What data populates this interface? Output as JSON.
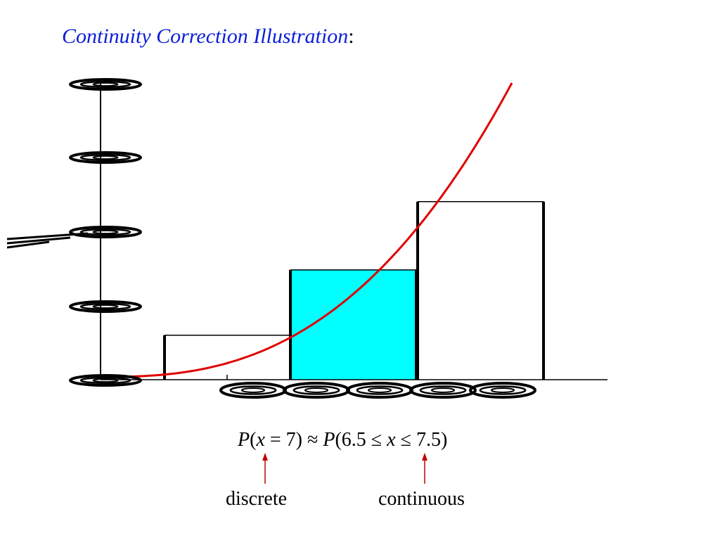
{
  "slide": {
    "title": "Continuity Correction Illustration",
    "title_suffix": ":",
    "title_color": "#0b1ed8"
  },
  "chart_data": {
    "type": "bar",
    "title": "",
    "y_axis_label": "",
    "y_ticks": [],
    "x_ticks": [],
    "bars": [
      {
        "height": 0.15,
        "highlighted": false
      },
      {
        "height": 0.37,
        "highlighted": true
      },
      {
        "height": 0.6,
        "highlighted": false
      }
    ],
    "curve": "increasing exponential-like red curve crossing the bar tops",
    "colors": {
      "highlight_fill": "#00ffff",
      "bar_fill": "#ffffff",
      "bar_stroke": "#000000",
      "curve": "#e00000",
      "arrow": "#c00000"
    }
  },
  "formula": {
    "lhs_P": "P",
    "lhs_open": "(",
    "lhs_x": "x",
    "lhs_rest": " = 7) ≈ ",
    "rhs_P": "P",
    "rhs_open": "(6.5 ≤ ",
    "rhs_x": "x",
    "rhs_rest": " ≤ 7.5)"
  },
  "labels": {
    "discrete": "discrete",
    "continuous": "continuous"
  }
}
